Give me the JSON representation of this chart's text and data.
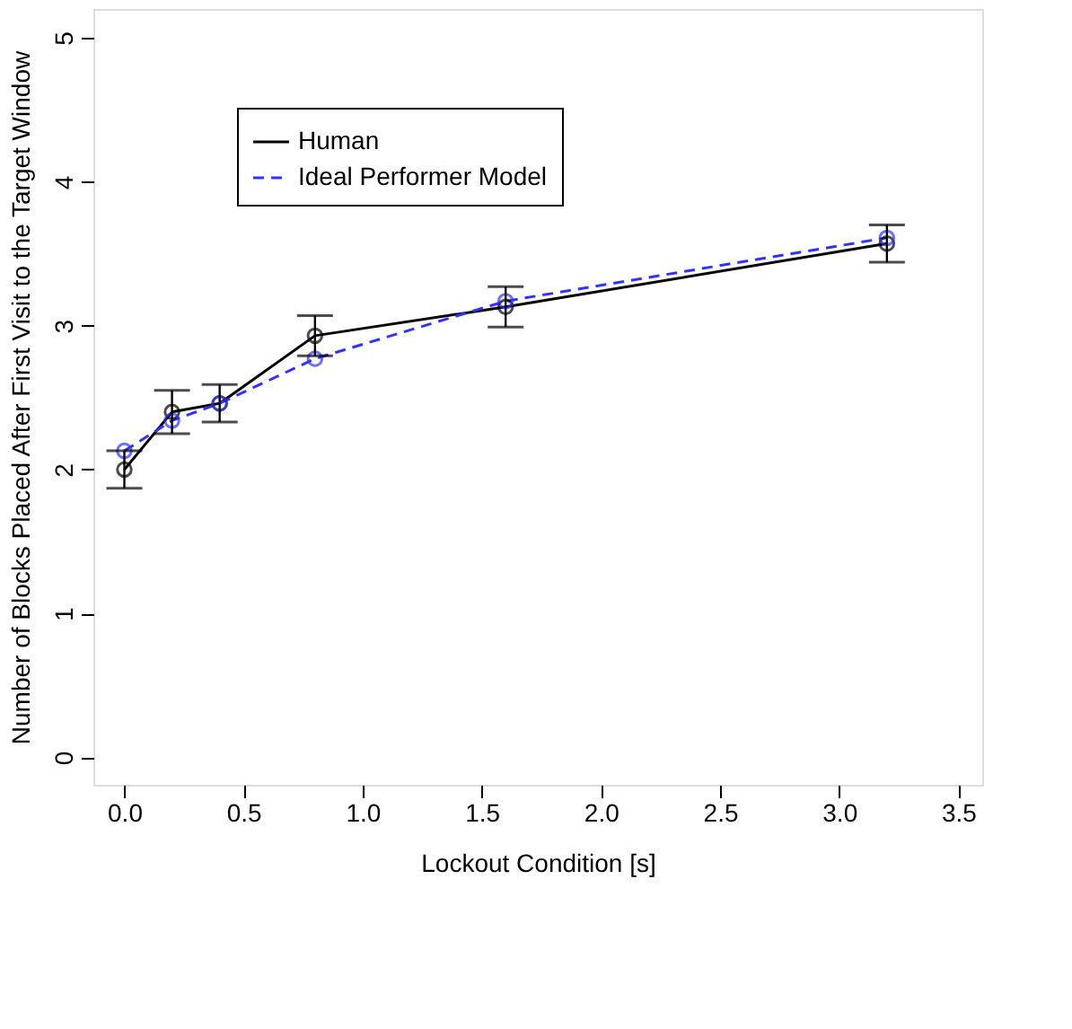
{
  "chart_data": {
    "type": "line",
    "xlabel": "Lockout Condition [s]",
    "ylabel": "Number of Blocks Placed After First Visit to the Target Window",
    "x": [
      0.0,
      0.2,
      0.4,
      0.8,
      1.6,
      3.2
    ],
    "series": [
      {
        "name": "Human",
        "color": "#000000",
        "line_style": "solid",
        "values": [
          2.0,
          2.4,
          2.46,
          2.93,
          3.13,
          3.57
        ],
        "errors": [
          0.13,
          0.15,
          0.13,
          0.14,
          0.14,
          0.13
        ]
      },
      {
        "name": "Ideal Performer Model",
        "color": "#3333ff",
        "line_style": "dashed",
        "values": [
          2.13,
          2.34,
          2.46,
          2.77,
          3.17,
          3.61
        ]
      }
    ],
    "marker": "circle",
    "xlim": [
      -0.13,
      3.6
    ],
    "xticks": [
      {
        "value": 0,
        "label": "0.0"
      },
      0.5,
      {
        "value": 1,
        "label": "1.0"
      },
      1.5,
      {
        "value": 2,
        "label": "2.0"
      },
      2.5,
      {
        "value": 3,
        "label": "3.0"
      },
      3.5
    ],
    "ylim": [
      -0.19,
      5.2
    ],
    "yticks": [
      0,
      1,
      2,
      3,
      4,
      5
    ],
    "grid": false,
    "legend": "top left"
  }
}
